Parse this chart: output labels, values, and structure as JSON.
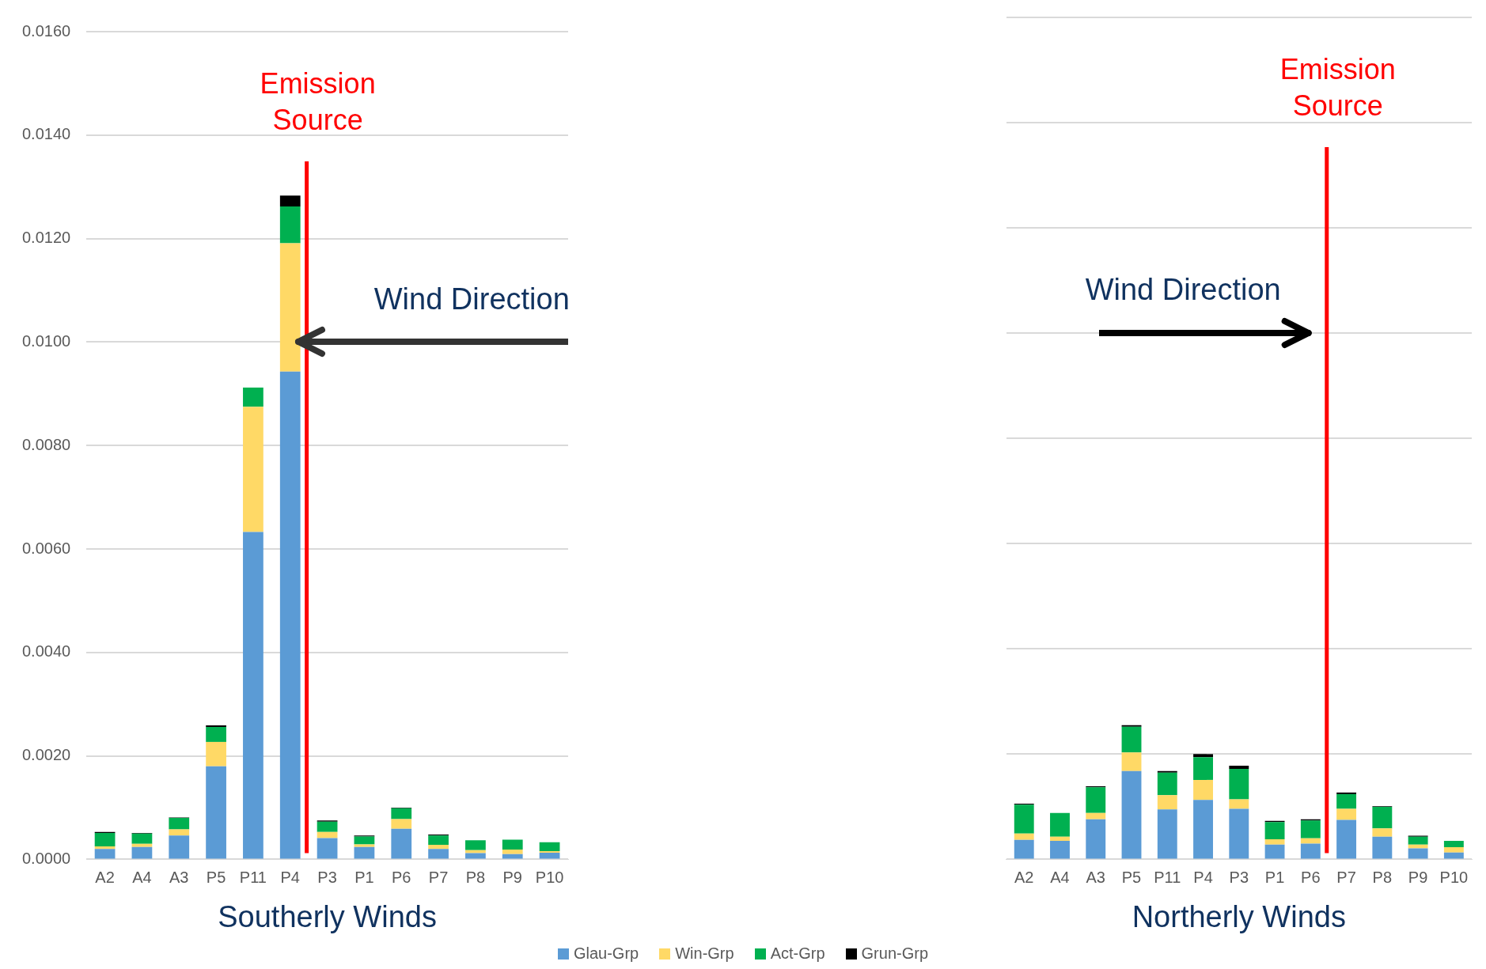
{
  "chart_data": [
    {
      "type": "bar",
      "stacked": true,
      "xlabel": "Southerly Winds",
      "categories": [
        "A2",
        "A4",
        "A3",
        "P5",
        "P11",
        "P4",
        "P3",
        "P1",
        "P6",
        "P7",
        "P8",
        "P9",
        "P10"
      ],
      "series": [
        {
          "name": "Glau-Grp",
          "color": "#5b9bd5",
          "values": [
            0.0002,
            0.00024,
            0.00046,
            0.0018,
            0.00633,
            0.00943,
            0.00041,
            0.00024,
            0.00059,
            0.0002,
            0.00012,
            0.0001,
            0.00013
          ]
        },
        {
          "name": "Win-Grp",
          "color": "#ffd966",
          "values": [
            5e-05,
            6e-05,
            0.00012,
            0.00047,
            0.00242,
            0.00248,
            0.00012,
            5e-05,
            0.00019,
            8e-05,
            6e-05,
            9e-05,
            3e-05
          ]
        },
        {
          "name": "Act-Grp",
          "color": "#00b050",
          "values": [
            0.00026,
            0.0002,
            0.00022,
            0.00029,
            0.00037,
            0.00071,
            0.0002,
            0.00015,
            0.00021,
            0.00018,
            0.00019,
            0.00019,
            0.00017
          ]
        },
        {
          "name": "Grun-Grp",
          "color": "#000000",
          "values": [
            2e-05,
            1e-05,
            1e-05,
            3e-05,
            0,
            0.00021,
            2e-05,
            2e-05,
            1e-05,
            2e-05,
            null,
            null,
            null
          ]
        }
      ],
      "ylim": [
        0,
        0.016
      ],
      "yticks": [
        {
          "value": 0,
          "label": "0.0000"
        },
        {
          "value": 0.002,
          "label": "0.0020"
        },
        {
          "value": 0.004,
          "label": "0.0040"
        },
        {
          "value": 0.006,
          "label": "0.0060"
        },
        {
          "value": 0.008,
          "label": "0.0080"
        },
        {
          "value": 0.01,
          "label": "0.0100"
        },
        {
          "value": 0.012,
          "label": "0.0120"
        },
        {
          "value": 0.014,
          "label": "0.0140"
        },
        {
          "value": 0.016,
          "label": "0.0160"
        }
      ],
      "grid": "y",
      "legend": "bottom",
      "ref_lines": [
        {
          "axis": "x",
          "value": "P4",
          "label": "Emission Source",
          "color": "#ff0000"
        }
      ],
      "annotations": [
        "Wind Direction"
      ]
    },
    {
      "type": "bar",
      "stacked": true,
      "xlabel": "Northerly Winds",
      "categories": [
        "A2",
        "A4",
        "A3",
        "P5",
        "P11",
        "P4",
        "P3",
        "P1",
        "P6",
        "P7",
        "P8",
        "P9",
        "P10"
      ],
      "series": [
        {
          "color": "#5b9bd5",
          "values": [
            0.00037,
            0.00035,
            0.00076,
            0.00168,
            0.00095,
            0.00113,
            0.00096,
            0.00028,
            0.0003,
            0.00075,
            0.00043,
            0.00021,
            0.00013
          ]
        },
        {
          "color": "#ffd966",
          "values": [
            0.00012,
            8e-05,
            0.00012,
            0.00035,
            0.00027,
            0.00038,
            0.00018,
            0.0001,
            0.0001,
            0.00021,
            0.00016,
            7e-05,
            0.0001
          ]
        },
        {
          "color": "#00b050",
          "values": [
            0.00055,
            0.00045,
            0.00049,
            0.00049,
            0.00043,
            0.00043,
            0.00058,
            0.00033,
            0.00034,
            0.00028,
            0.00041,
            0.00015,
            0.00012
          ]
        },
        {
          "color": "#000000",
          "values": [
            2e-05,
            0,
            2e-05,
            3e-05,
            3e-05,
            6e-05,
            6e-05,
            2e-05,
            2e-05,
            3e-05,
            1e-05,
            2e-05,
            0
          ]
        }
      ],
      "ylim": [
        0,
        0.016
      ],
      "yticks": [
        0,
        0.002,
        0.004,
        0.006,
        0.008,
        0.01,
        0.012,
        0.014,
        0.016
      ],
      "tick_labels": "x",
      "grid": "y",
      "ref_lines": [
        {
          "axis": "x",
          "value": "P6",
          "label": "Emission Source",
          "color": "#ff0000"
        }
      ],
      "annotations": [
        "Wind Direction"
      ]
    }
  ]
}
